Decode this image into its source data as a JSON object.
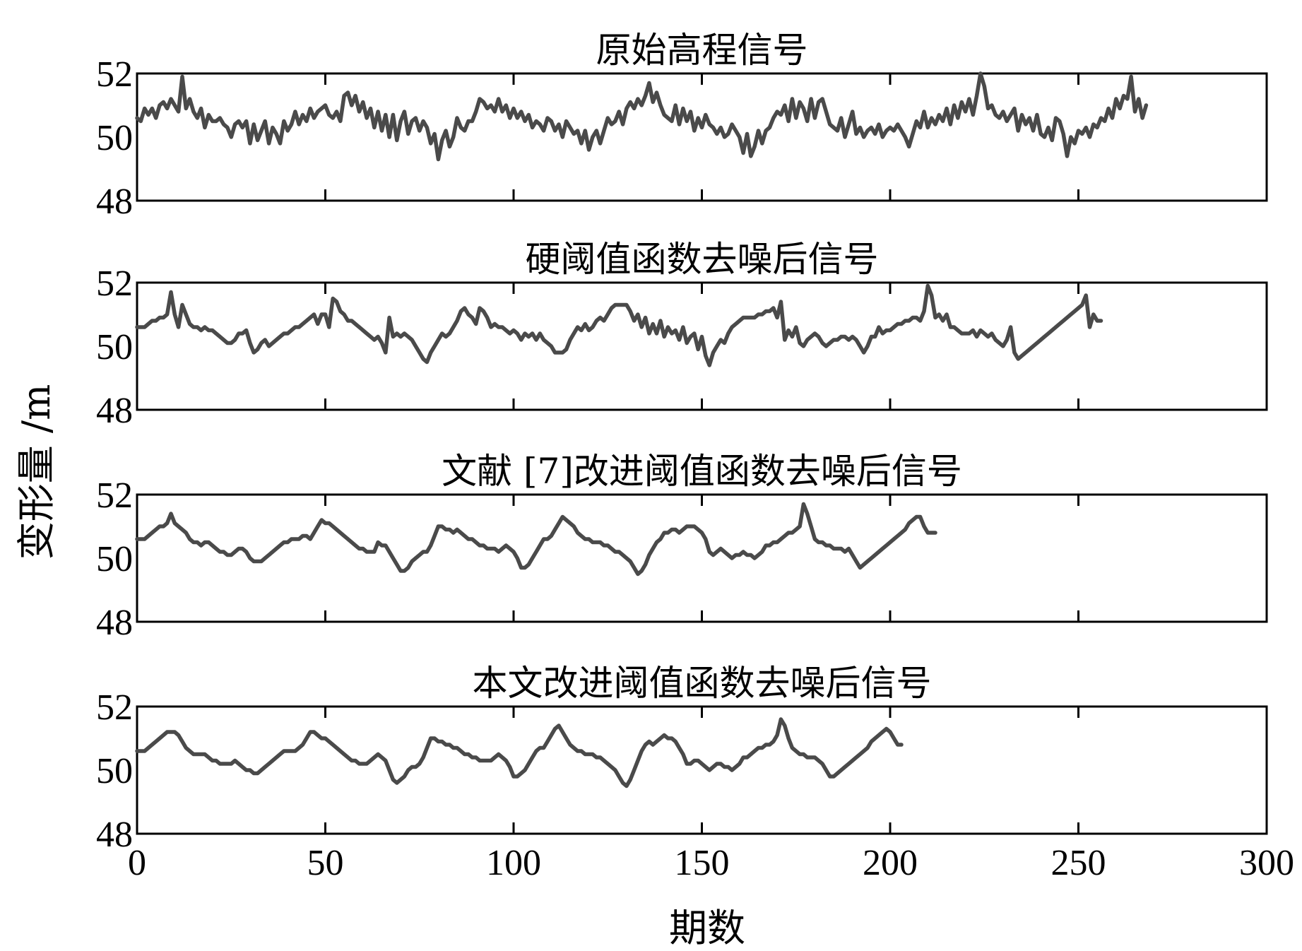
{
  "chart_data": [
    {
      "type": "line",
      "title": "原始高程信号",
      "xlim": [
        0,
        300
      ],
      "ylim": [
        48,
        52
      ],
      "xticks": [
        0,
        50,
        100,
        150,
        200,
        250,
        300
      ],
      "yticks": [
        "48",
        "50",
        "52"
      ],
      "grid": false,
      "series": [
        {
          "x_start": 0,
          "x_step": 1,
          "values": [
            50.6,
            50.5,
            50.9,
            50.7,
            50.9,
            50.6,
            51.0,
            51.1,
            50.9,
            51.2,
            51.0,
            50.8,
            51.9,
            50.9,
            51.2,
            50.8,
            50.6,
            50.9,
            50.3,
            50.7,
            50.5,
            50.5,
            50.6,
            50.4,
            50.3,
            50.0,
            50.4,
            50.5,
            50.3,
            50.5,
            49.8,
            50.4,
            49.9,
            50.2,
            50.5,
            49.8,
            50.3,
            50.1,
            49.8,
            50.5,
            50.2,
            50.4,
            50.8,
            50.4,
            50.7,
            50.5,
            50.9,
            50.6,
            50.8,
            50.9,
            51.0,
            50.7,
            50.6,
            50.8,
            50.5,
            51.3,
            51.4,
            51.0,
            51.3,
            50.8,
            51.1,
            50.6,
            50.9,
            50.3,
            50.8,
            50.2,
            50.7,
            50.0,
            50.7,
            49.9,
            50.5,
            50.8,
            50.1,
            50.5,
            50.6,
            50.2,
            50.5,
            50.3,
            49.8,
            50.1,
            49.3,
            49.9,
            50.2,
            49.7,
            50.0,
            50.6,
            50.3,
            50.2,
            50.5,
            50.5,
            50.8,
            51.2,
            51.1,
            50.9,
            51.0,
            50.8,
            51.2,
            50.8,
            51.0,
            50.6,
            50.9,
            50.6,
            50.8,
            50.5,
            50.7,
            50.3,
            50.5,
            50.4,
            50.2,
            50.6,
            50.5,
            50.2,
            50.4,
            50.0,
            50.5,
            50.3,
            50.1,
            50.2,
            49.8,
            50.2,
            49.6,
            50.0,
            50.2,
            49.8,
            50.2,
            50.6,
            50.4,
            50.5,
            50.8,
            50.4,
            50.9,
            51.1,
            50.9,
            51.2,
            51.0,
            51.3,
            51.7,
            51.1,
            51.4,
            51.0,
            50.7,
            50.6,
            50.5,
            51.0,
            50.4,
            50.9,
            50.5,
            50.8,
            50.2,
            50.6,
            50.3,
            50.7,
            50.4,
            50.3,
            50.1,
            50.3,
            50.0,
            50.1,
            50.4,
            50.2,
            50.0,
            49.5,
            50.1,
            49.4,
            49.7,
            50.2,
            49.8,
            50.2,
            50.3,
            50.6,
            50.8,
            50.7,
            51.0,
            50.5,
            51.2,
            50.6,
            51.1,
            50.9,
            50.5,
            51.2,
            50.6,
            51.1,
            51.2,
            50.8,
            50.4,
            50.3,
            50.2,
            50.6,
            50.0,
            50.4,
            50.8,
            50.1,
            50.3,
            50.0,
            50.2,
            50.3,
            50.1,
            50.4,
            50.0,
            50.2,
            50.3,
            50.2,
            50.4,
            50.2,
            50.0,
            49.7,
            50.1,
            50.5,
            50.3,
            50.8,
            50.3,
            50.6,
            50.4,
            50.7,
            50.5,
            50.9,
            50.4,
            51.0,
            50.6,
            51.1,
            50.8,
            51.2,
            50.7,
            51.3,
            52.0,
            51.6,
            50.9,
            51.0,
            50.7,
            50.6,
            50.8,
            50.5,
            50.7,
            50.9,
            50.2,
            50.7,
            50.4,
            50.6,
            50.2,
            50.7,
            50.1,
            50.0,
            50.3,
            49.9,
            50.6,
            50.5,
            50.1,
            49.4,
            50.0,
            49.8,
            50.2,
            50.1,
            50.3,
            50.0,
            50.4,
            50.3,
            50.6,
            50.5,
            50.9,
            50.6,
            51.2,
            50.9,
            51.3,
            51.2,
            51.9,
            50.8,
            51.2,
            50.6,
            51.0
          ]
        }
      ]
    },
    {
      "type": "line",
      "title": "硬阈值函数去噪后信号",
      "xlim": [
        0,
        300
      ],
      "ylim": [
        48,
        52
      ],
      "xticks": [
        0,
        50,
        100,
        150,
        200,
        250,
        300
      ],
      "yticks": [
        "48",
        "50",
        "52"
      ],
      "grid": false,
      "series": [
        {
          "x_start": 0,
          "x_step": 1,
          "values": [
            50.6,
            50.6,
            50.6,
            50.7,
            50.8,
            50.8,
            50.9,
            50.9,
            51.0,
            51.7,
            51.0,
            50.6,
            51.3,
            51.0,
            50.7,
            50.6,
            50.6,
            50.5,
            50.6,
            50.5,
            50.5,
            50.4,
            50.3,
            50.2,
            50.1,
            50.1,
            50.2,
            50.4,
            50.4,
            50.5,
            50.1,
            49.8,
            49.9,
            50.1,
            50.2,
            50.0,
            50.1,
            50.2,
            50.3,
            50.4,
            50.4,
            50.5,
            50.6,
            50.6,
            50.7,
            50.8,
            50.9,
            51.0,
            50.7,
            51.0,
            51.0,
            50.6,
            51.5,
            51.4,
            51.1,
            51.0,
            50.8,
            50.8,
            50.7,
            50.6,
            50.5,
            50.4,
            50.3,
            50.2,
            50.3,
            50.1,
            49.8,
            50.9,
            50.3,
            50.4,
            50.3,
            50.4,
            50.3,
            50.2,
            50.0,
            49.8,
            49.6,
            49.5,
            49.8,
            50.0,
            50.2,
            50.4,
            50.3,
            50.4,
            50.6,
            50.8,
            51.1,
            51.2,
            51.0,
            50.9,
            50.7,
            51.2,
            51.1,
            50.9,
            50.6,
            50.7,
            50.6,
            50.6,
            50.5,
            50.4,
            50.5,
            50.4,
            50.2,
            50.4,
            50.3,
            50.4,
            50.2,
            50.4,
            50.2,
            50.1,
            50.0,
            49.8,
            49.8,
            49.8,
            49.9,
            50.2,
            50.4,
            50.6,
            50.5,
            50.7,
            50.5,
            50.6,
            50.8,
            50.9,
            50.8,
            51.0,
            51.2,
            51.3,
            51.3,
            51.3,
            51.3,
            51.1,
            50.8,
            51.0,
            50.6,
            50.9,
            50.4,
            50.7,
            50.4,
            50.8,
            50.3,
            50.6,
            50.4,
            50.5,
            50.2,
            50.6,
            50.1,
            50.3,
            50.4,
            49.9,
            50.3,
            49.7,
            49.4,
            49.8,
            50.0,
            50.2,
            50.1,
            50.4,
            50.6,
            50.7,
            50.8,
            50.9,
            50.9,
            50.9,
            50.9,
            51.0,
            51.0,
            51.1,
            51.1,
            51.2,
            50.9,
            51.4,
            50.2,
            50.5,
            50.3,
            50.6,
            50.1,
            50.0,
            50.2,
            50.3,
            50.4,
            50.3,
            50.1,
            50.0,
            50.1,
            50.2,
            50.2,
            50.3,
            50.3,
            50.2,
            50.3,
            50.2,
            50.0,
            49.8,
            50.0,
            50.3,
            50.3,
            50.6,
            50.4,
            50.5,
            50.5,
            50.6,
            50.7,
            50.7,
            50.8,
            50.8,
            50.9,
            50.9,
            50.8,
            51.1,
            51.9,
            51.6,
            50.9,
            51.0,
            50.8,
            51.0,
            50.6,
            50.6,
            50.5,
            50.4,
            50.4,
            50.4,
            50.5,
            50.3,
            50.5,
            50.4,
            50.3,
            50.4,
            50.2,
            50.1,
            50.0,
            50.2,
            50.6,
            49.8,
            49.6,
            49.7,
            49.8,
            49.9,
            50.0,
            50.1,
            50.2,
            50.3,
            50.4,
            50.5,
            50.6,
            50.7,
            50.8,
            50.9,
            51.0,
            51.1,
            51.2,
            51.3,
            51.6,
            50.6,
            51.0,
            50.8,
            50.8
          ]
        }
      ]
    },
    {
      "type": "line",
      "title": "文献 [7]改进阈值函数去噪后信号",
      "xlim": [
        0,
        300
      ],
      "ylim": [
        48,
        52
      ],
      "xticks": [
        0,
        50,
        100,
        150,
        200,
        250,
        300
      ],
      "yticks": [
        "48",
        "50",
        "52"
      ],
      "grid": false,
      "series": [
        {
          "x_start": 0,
          "x_step": 1,
          "values": [
            50.6,
            50.6,
            50.6,
            50.7,
            50.8,
            50.9,
            51.0,
            51.0,
            51.1,
            51.4,
            51.1,
            51.0,
            50.9,
            50.8,
            50.6,
            50.5,
            50.5,
            50.4,
            50.5,
            50.5,
            50.4,
            50.3,
            50.2,
            50.2,
            50.1,
            50.1,
            50.2,
            50.3,
            50.3,
            50.2,
            50.0,
            49.9,
            49.9,
            49.9,
            50.0,
            50.1,
            50.2,
            50.3,
            50.4,
            50.5,
            50.5,
            50.6,
            50.6,
            50.6,
            50.7,
            50.7,
            50.6,
            50.8,
            51.0,
            51.2,
            51.1,
            51.1,
            51.0,
            50.9,
            50.8,
            50.7,
            50.6,
            50.5,
            50.4,
            50.3,
            50.3,
            50.2,
            50.2,
            50.2,
            50.5,
            50.4,
            50.4,
            50.2,
            50.0,
            49.8,
            49.6,
            49.6,
            49.7,
            49.9,
            50.0,
            50.1,
            50.2,
            50.2,
            50.4,
            50.7,
            51.0,
            51.0,
            50.9,
            50.9,
            50.8,
            50.9,
            50.8,
            50.7,
            50.6,
            50.6,
            50.5,
            50.4,
            50.4,
            50.3,
            50.3,
            50.3,
            50.2,
            50.3,
            50.4,
            50.3,
            50.2,
            50.0,
            49.7,
            49.7,
            49.8,
            50.0,
            50.2,
            50.4,
            50.6,
            50.6,
            50.7,
            50.9,
            51.1,
            51.3,
            51.2,
            51.1,
            51.0,
            50.8,
            50.7,
            50.6,
            50.6,
            50.5,
            50.5,
            50.5,
            50.4,
            50.4,
            50.3,
            50.2,
            50.2,
            50.1,
            50.0,
            49.9,
            49.7,
            49.5,
            49.6,
            49.8,
            50.1,
            50.3,
            50.5,
            50.6,
            50.8,
            50.8,
            50.9,
            50.9,
            50.8,
            50.9,
            51.0,
            51.0,
            51.0,
            50.9,
            50.8,
            50.6,
            50.2,
            50.1,
            50.2,
            50.3,
            50.2,
            50.1,
            50.0,
            50.1,
            50.1,
            50.2,
            50.1,
            50.1,
            50.0,
            50.1,
            50.2,
            50.4,
            50.4,
            50.5,
            50.5,
            50.6,
            50.7,
            50.8,
            50.8,
            50.9,
            51.0,
            51.7,
            51.4,
            51.0,
            50.6,
            50.5,
            50.5,
            50.4,
            50.4,
            50.3,
            50.3,
            50.3,
            50.2,
            50.3,
            50.1,
            49.9,
            49.7,
            49.8,
            49.9,
            50.0,
            50.1,
            50.2,
            50.3,
            50.4,
            50.5,
            50.6,
            50.7,
            50.8,
            50.9,
            51.1,
            51.2,
            51.3,
            51.3,
            51.0,
            50.8,
            50.8,
            50.8
          ]
        }
      ]
    },
    {
      "type": "line",
      "title": "本文改进阈值函数去噪后信号",
      "xlim": [
        0,
        300
      ],
      "ylim": [
        48,
        52
      ],
      "xticks": [
        0,
        50,
        100,
        150,
        200,
        250,
        300
      ],
      "yticks": [
        "48",
        "50",
        "52"
      ],
      "grid": false,
      "series": [
        {
          "x_start": 0,
          "x_step": 1,
          "values": [
            50.6,
            50.6,
            50.6,
            50.7,
            50.8,
            50.9,
            51.0,
            51.1,
            51.2,
            51.2,
            51.2,
            51.1,
            50.9,
            50.7,
            50.6,
            50.5,
            50.5,
            50.5,
            50.5,
            50.4,
            50.3,
            50.3,
            50.2,
            50.2,
            50.2,
            50.2,
            50.3,
            50.2,
            50.1,
            50.0,
            50.0,
            49.9,
            49.9,
            50.0,
            50.1,
            50.2,
            50.3,
            50.4,
            50.5,
            50.6,
            50.6,
            50.6,
            50.6,
            50.7,
            50.8,
            51.0,
            51.2,
            51.2,
            51.1,
            51.0,
            51.0,
            50.9,
            50.8,
            50.7,
            50.6,
            50.5,
            50.4,
            50.3,
            50.3,
            50.2,
            50.2,
            50.2,
            50.3,
            50.4,
            50.5,
            50.4,
            50.3,
            50.0,
            49.7,
            49.6,
            49.7,
            49.8,
            50.0,
            50.1,
            50.1,
            50.2,
            50.4,
            50.7,
            51.0,
            51.0,
            50.9,
            50.9,
            50.8,
            50.8,
            50.7,
            50.7,
            50.6,
            50.5,
            50.5,
            50.4,
            50.4,
            50.3,
            50.3,
            50.3,
            50.3,
            50.4,
            50.5,
            50.4,
            50.3,
            50.1,
            49.8,
            49.8,
            49.9,
            50.0,
            50.2,
            50.4,
            50.6,
            50.7,
            50.7,
            50.9,
            51.1,
            51.3,
            51.4,
            51.2,
            51.0,
            50.8,
            50.7,
            50.6,
            50.6,
            50.5,
            50.5,
            50.5,
            50.4,
            50.4,
            50.3,
            50.2,
            50.1,
            50.0,
            49.8,
            49.6,
            49.5,
            49.7,
            50.0,
            50.3,
            50.6,
            50.8,
            50.9,
            50.8,
            50.9,
            51.0,
            51.1,
            51.0,
            51.0,
            50.9,
            50.7,
            50.5,
            50.2,
            50.2,
            50.3,
            50.3,
            50.2,
            50.1,
            50.0,
            50.1,
            50.2,
            50.2,
            50.1,
            50.1,
            50.0,
            50.1,
            50.2,
            50.4,
            50.4,
            50.5,
            50.6,
            50.7,
            50.7,
            50.8,
            50.8,
            50.9,
            51.1,
            51.6,
            51.4,
            51.0,
            50.7,
            50.6,
            50.5,
            50.5,
            50.4,
            50.4,
            50.4,
            50.3,
            50.2,
            50.0,
            49.8,
            49.8,
            49.9,
            50.0,
            50.1,
            50.2,
            50.3,
            50.4,
            50.5,
            50.6,
            50.7,
            50.9,
            51.0,
            51.1,
            51.2,
            51.3,
            51.2,
            51.0,
            50.8,
            50.8
          ]
        }
      ]
    }
  ],
  "xlabel": "期数",
  "ylabel": "变形量 /m"
}
